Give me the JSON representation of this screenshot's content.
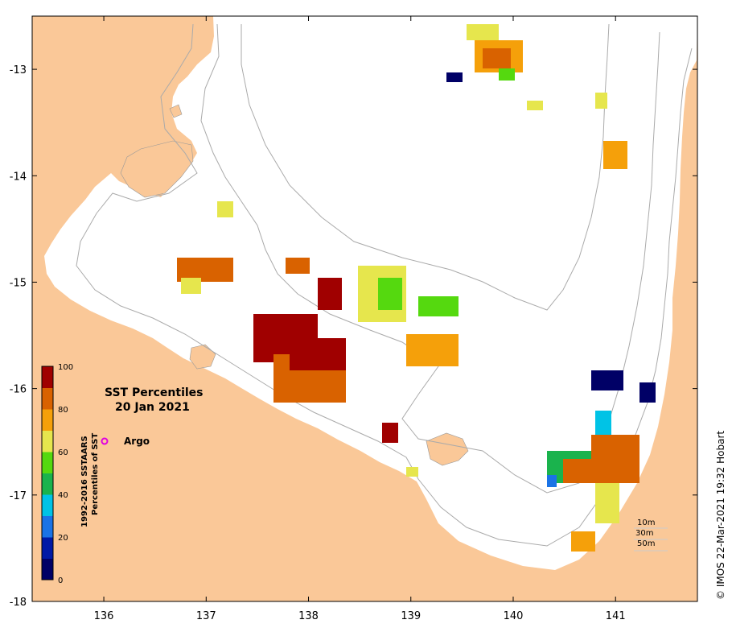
{
  "title_line1": "SST Percentiles",
  "title_line2": "20 Jan 2021",
  "argo": {
    "label": "Argo",
    "lon": 136.0,
    "lat": -16.5,
    "color": "#e000e0"
  },
  "colorbar": {
    "title_line1": "1992-2016 SSTAARS",
    "title_line2": "Percentiles of SST",
    "ticks": [
      "100",
      "80",
      "60",
      "40",
      "20",
      "0"
    ],
    "colors": [
      "#000066",
      "#0019a6",
      "#1a73e6",
      "#00c3e6",
      "#1ab34d",
      "#55d90f",
      "#e6e64d",
      "#f5a00a",
      "#d96200",
      "#a00000"
    ]
  },
  "isobaths": [
    "10m",
    "30m",
    "50m"
  ],
  "credit": "© IMOS 22-Mar-2021 19:32 Hobart",
  "land_color": "#fac898",
  "x_axis": {
    "ticks": [
      "136",
      "137",
      "138",
      "139",
      "140",
      "141"
    ],
    "min": 135.3,
    "max": 141.8
  },
  "y_axis": {
    "ticks": [
      "-13",
      "-14",
      "-15",
      "-16",
      "-17",
      "-18"
    ],
    "min": -18.0,
    "max": -12.5
  }
}
